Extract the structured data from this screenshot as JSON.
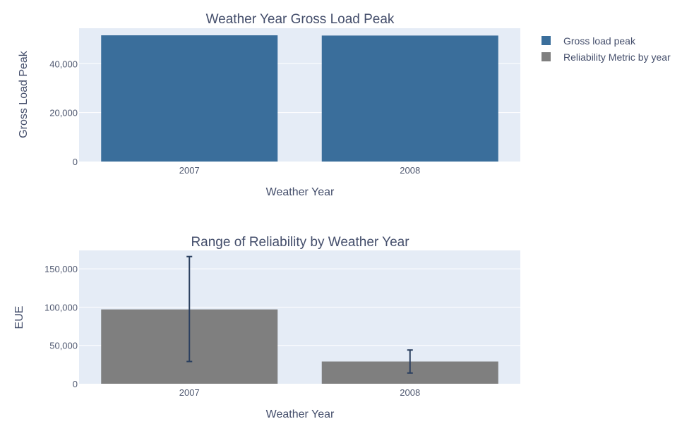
{
  "colors": {
    "gross_bar": "#3a6e9b",
    "reliability_bar": "#7f7f7f",
    "error_bar": "#2a3f5f",
    "plot_bg": "#e5ecf6"
  },
  "legend": {
    "items": [
      {
        "label": "Gross load peak",
        "color": "#3a6e9b"
      },
      {
        "label": "Reliability Metric by year",
        "color": "#7f7f7f"
      }
    ]
  },
  "chart_data": [
    {
      "type": "bar",
      "title": "Weather Year Gross Load Peak",
      "xlabel": "Weather Year",
      "ylabel": "Gross Load Peak",
      "categories": [
        "2007",
        "2008"
      ],
      "series": [
        {
          "name": "Gross load peak",
          "values": [
            51600,
            51500
          ]
        }
      ],
      "ylim": [
        0,
        54500
      ],
      "yticks": [
        0,
        20000,
        40000
      ],
      "ytick_labels": [
        "0",
        "20,000",
        "40,000"
      ],
      "grid": true
    },
    {
      "type": "bar",
      "title": "Range of Reliability by Weather Year",
      "xlabel": "Weather Year",
      "ylabel": "EUE",
      "categories": [
        "2007",
        "2008"
      ],
      "series": [
        {
          "name": "Reliability Metric by year",
          "values": [
            97000,
            29000
          ],
          "error_low": [
            29000,
            14000
          ],
          "error_high": [
            166000,
            44000
          ]
        }
      ],
      "ylim": [
        0,
        174000
      ],
      "yticks": [
        0,
        50000,
        100000,
        150000
      ],
      "ytick_labels": [
        "0",
        "50,000",
        "100,000",
        "150,000"
      ],
      "grid": true
    }
  ]
}
